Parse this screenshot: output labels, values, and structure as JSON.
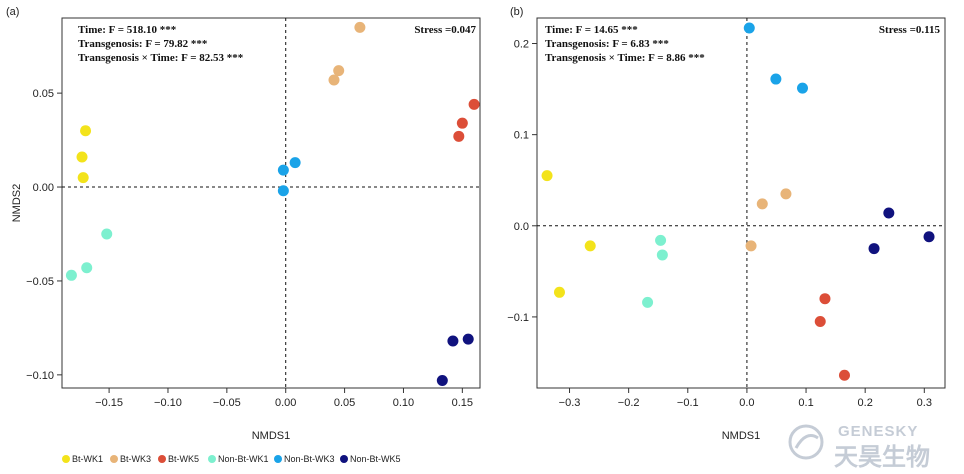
{
  "legend": [
    {
      "label": "Bt-WK1",
      "color": "#f3e31b"
    },
    {
      "label": "Bt-WK3",
      "color": "#e8b478"
    },
    {
      "label": "Bt-WK5",
      "color": "#dc4e38"
    },
    {
      "label": "Non-Bt-WK1",
      "color": "#7df0cf"
    },
    {
      "label": "Non-Bt-WK3",
      "color": "#1aa3e8"
    },
    {
      "label": "Non-Bt-WK5",
      "color": "#10127e"
    }
  ],
  "watermark": {
    "en": "GENESKY",
    "cn": "天昊生物"
  },
  "chart_data": [
    {
      "type": "scatter",
      "panel_label": "(a)",
      "xlabel": "NMDS1",
      "ylabel": "NMDS2",
      "xlim": [
        -0.19,
        0.165
      ],
      "ylim": [
        -0.107,
        0.09
      ],
      "xticks": [
        -0.15,
        -0.1,
        -0.05,
        0.0,
        0.05,
        0.1,
        0.15
      ],
      "xtick_labels": [
        "−0.15",
        "−0.10",
        "−0.05",
        "0.00",
        "0.05",
        "0.10",
        "0.15"
      ],
      "yticks": [
        -0.1,
        -0.05,
        0.0,
        0.05
      ],
      "ytick_labels": [
        "−0.10",
        "−0.05",
        "0.00",
        "0.05"
      ],
      "stats": [
        "Time: F = 518.10 ***",
        "Transgenosis: F = 79.82 ***",
        "Transgenosis × Time: F = 82.53 ***"
      ],
      "stress": "Stress =0.047",
      "reference_lines": {
        "x": 0,
        "y": 0
      },
      "series": [
        {
          "name": "Bt-WK1",
          "color": "#f3e31b",
          "points": [
            [
              -0.17,
              0.03
            ],
            [
              -0.173,
              0.016
            ],
            [
              -0.172,
              0.005
            ]
          ]
        },
        {
          "name": "Bt-WK3",
          "color": "#e8b478",
          "points": [
            [
              0.063,
              0.085
            ],
            [
              0.045,
              0.062
            ],
            [
              0.041,
              0.057
            ]
          ]
        },
        {
          "name": "Bt-WK5",
          "color": "#dc4e38",
          "points": [
            [
              0.16,
              0.044
            ],
            [
              0.15,
              0.034
            ],
            [
              0.147,
              0.027
            ]
          ]
        },
        {
          "name": "Non-Bt-WK1",
          "color": "#7df0cf",
          "points": [
            [
              -0.152,
              -0.025
            ],
            [
              -0.169,
              -0.043
            ],
            [
              -0.182,
              -0.047
            ]
          ]
        },
        {
          "name": "Non-Bt-WK3",
          "color": "#1aa3e8",
          "points": [
            [
              0.008,
              0.013
            ],
            [
              -0.002,
              0.009
            ],
            [
              -0.002,
              -0.002
            ]
          ]
        },
        {
          "name": "Non-Bt-WK5",
          "color": "#10127e",
          "points": [
            [
              0.155,
              -0.081
            ],
            [
              0.142,
              -0.082
            ],
            [
              0.133,
              -0.103
            ]
          ]
        }
      ]
    },
    {
      "type": "scatter",
      "panel_label": "(b)",
      "xlabel": "NMDS1",
      "ylabel": "",
      "xlim": [
        -0.355,
        0.335
      ],
      "ylim": [
        -0.178,
        0.228
      ],
      "xticks": [
        -0.3,
        -0.2,
        -0.1,
        0.0,
        0.1,
        0.2,
        0.3
      ],
      "xtick_labels": [
        "−0.3",
        "−0.2",
        "−0.1",
        "0.0",
        "0.1",
        "0.2",
        "0.3"
      ],
      "yticks": [
        -0.1,
        0.0,
        0.1,
        0.2
      ],
      "ytick_labels": [
        "−0.1",
        "0.0",
        "0.1",
        "0.2"
      ],
      "stats": [
        "Time: F = 14.65 ***",
        "Transgenosis: F = 6.83 ***",
        "Transgenosis × Time: F = 8.86 ***"
      ],
      "stress": "Stress =0.115",
      "reference_lines": {
        "x": 0,
        "y": 0
      },
      "series": [
        {
          "name": "Bt-WK1",
          "color": "#f3e31b",
          "points": [
            [
              -0.338,
              0.055
            ],
            [
              -0.265,
              -0.022
            ],
            [
              -0.317,
              -0.073
            ]
          ]
        },
        {
          "name": "Bt-WK3",
          "color": "#e8b478",
          "points": [
            [
              0.066,
              0.035
            ],
            [
              0.026,
              0.024
            ],
            [
              0.007,
              -0.022
            ]
          ]
        },
        {
          "name": "Bt-WK5",
          "color": "#dc4e38",
          "points": [
            [
              0.132,
              -0.08
            ],
            [
              0.124,
              -0.105
            ],
            [
              0.165,
              -0.164
            ]
          ]
        },
        {
          "name": "Non-Bt-WK1",
          "color": "#7df0cf",
          "points": [
            [
              -0.146,
              -0.016
            ],
            [
              -0.143,
              -0.032
            ],
            [
              -0.168,
              -0.084
            ]
          ]
        },
        {
          "name": "Non-Bt-WK3",
          "color": "#1aa3e8",
          "points": [
            [
              0.004,
              0.217
            ],
            [
              0.049,
              0.161
            ],
            [
              0.094,
              0.151
            ]
          ]
        },
        {
          "name": "Non-Bt-WK5",
          "color": "#10127e",
          "points": [
            [
              0.24,
              0.014
            ],
            [
              0.308,
              -0.012
            ],
            [
              0.215,
              -0.025
            ]
          ]
        }
      ]
    }
  ]
}
